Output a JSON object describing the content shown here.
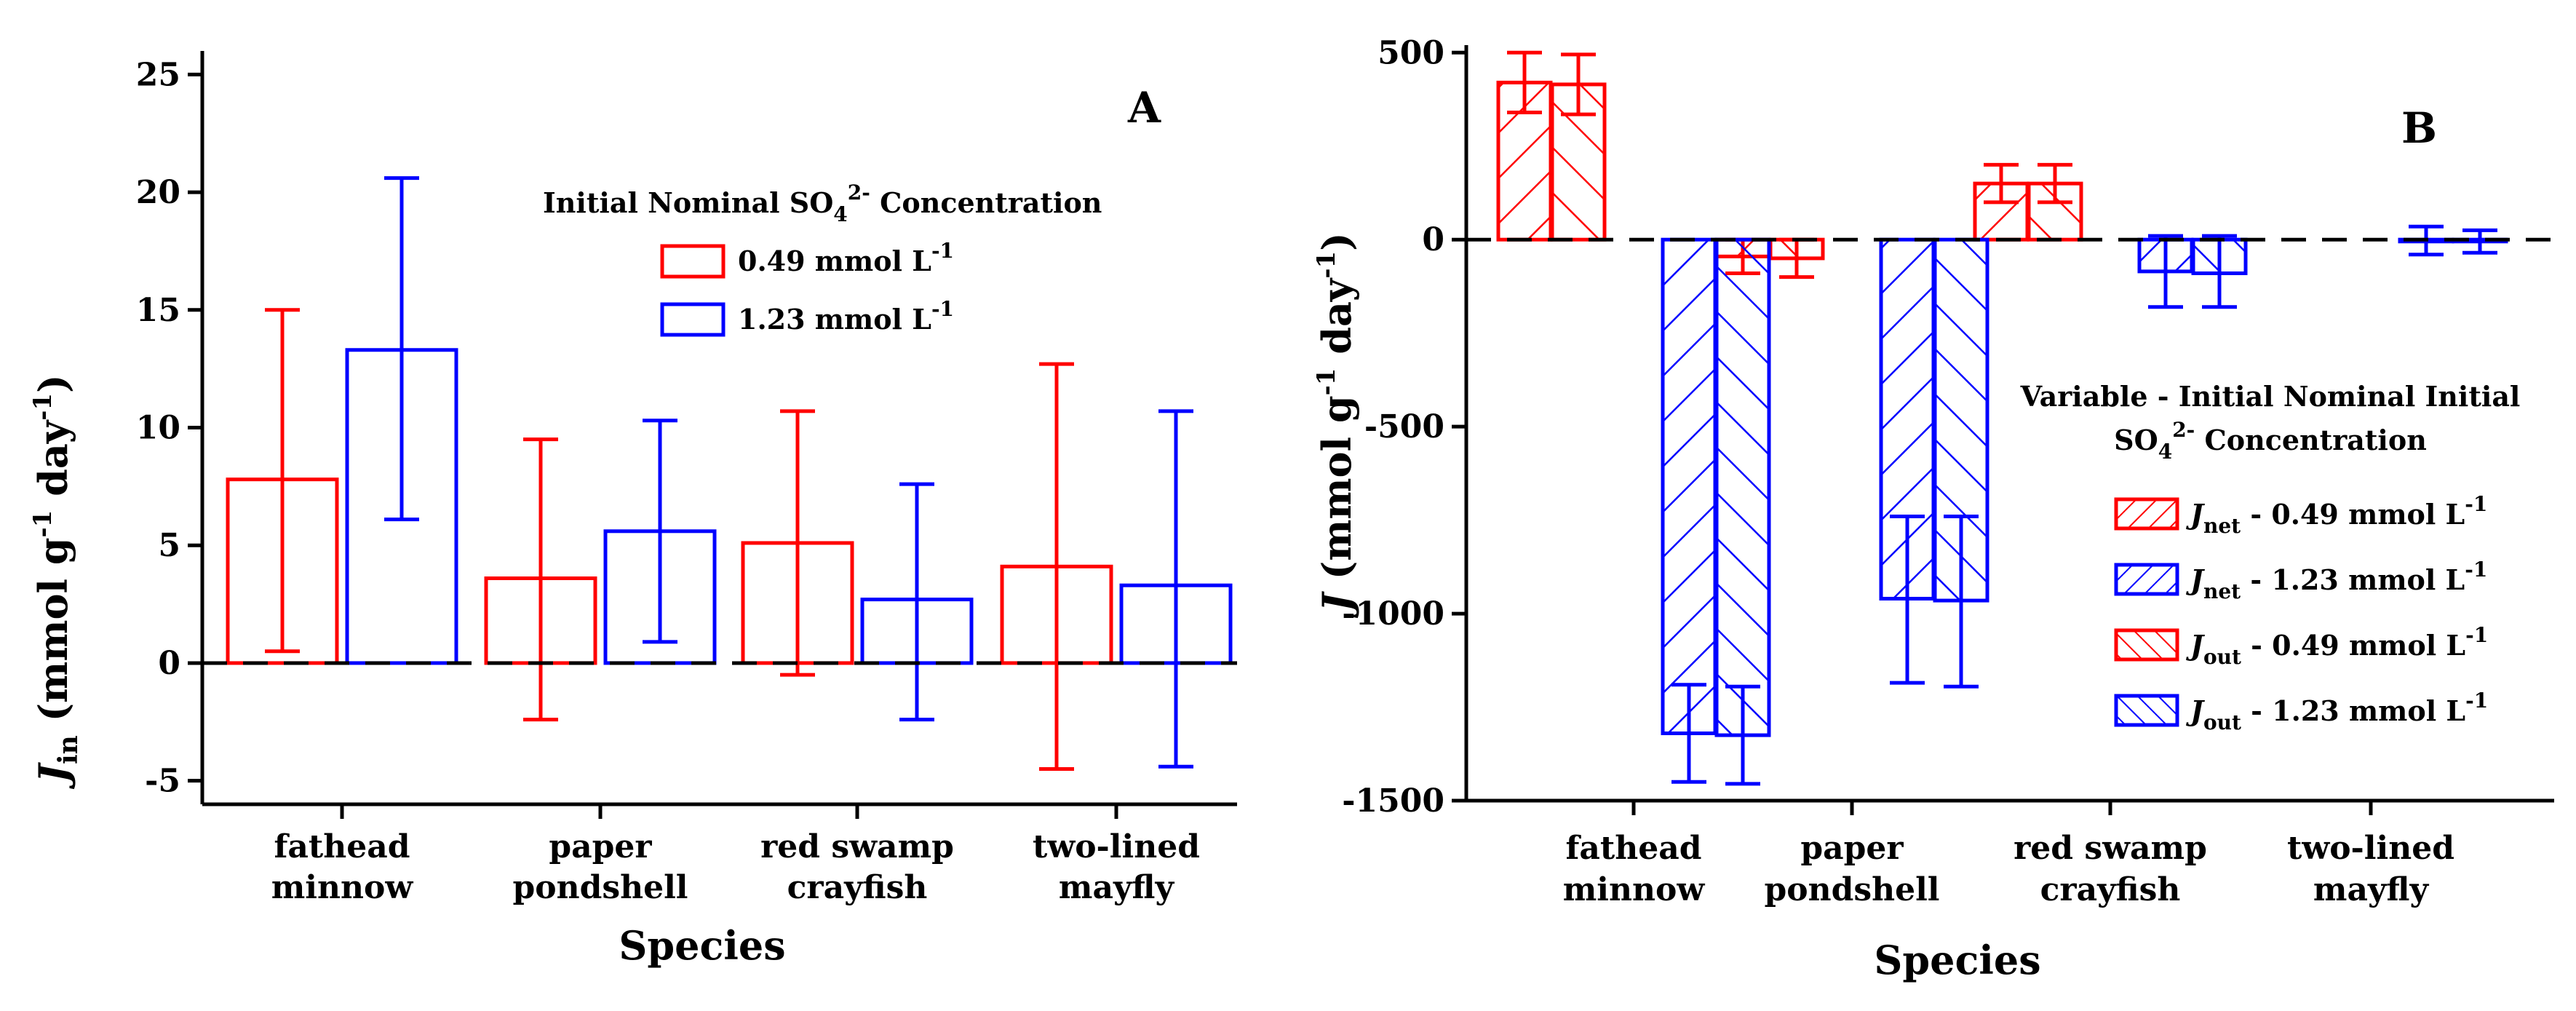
{
  "colors": {
    "red": "#ff0000",
    "blue": "#0000ff",
    "axis": "#000000"
  },
  "chart_data": [
    {
      "panel": "A",
      "type": "bar",
      "categories": [
        [
          "fathead",
          "minnow"
        ],
        [
          "paper",
          "pondshell"
        ],
        [
          "red swamp",
          "crayfish"
        ],
        [
          "two-lined",
          "mayfly"
        ]
      ],
      "xlabel": "Species",
      "ylabel_italic": "J",
      "ylabel_sub": "in",
      "ylabel_rest": " (mmol g",
      "ylabel_exp1": "-1",
      "ylabel_mid": " day",
      "ylabel_exp2": "-1",
      "ylabel_end": ")",
      "ylim": [
        -6,
        26
      ],
      "yticks": [
        "25",
        "20",
        "15",
        "10",
        "5",
        "0",
        "-5"
      ],
      "yticks_values": [
        25,
        20,
        15,
        10,
        5,
        0,
        -5
      ],
      "legend": {
        "title_main": "Initial Nominal SO",
        "title_sub": "4",
        "title_sup": "2-",
        "title_end": " Concentration",
        "items": [
          {
            "label": "0.49 mmol L",
            "sup": "-1",
            "color": "red"
          },
          {
            "label": "1.23 mmol L",
            "sup": "-1",
            "color": "blue"
          }
        ]
      },
      "series": [
        {
          "name": "0.49 mmol L-1",
          "color": "red",
          "values": [
            7.8,
            3.6,
            5.1,
            4.1
          ],
          "err_high": [
            15.0,
            9.5,
            10.7,
            12.7
          ],
          "err_low": [
            0.5,
            -2.4,
            -0.5,
            -4.5
          ]
        },
        {
          "name": "1.23 mmol L-1",
          "color": "blue",
          "values": [
            13.3,
            5.6,
            2.7,
            3.3
          ],
          "err_high": [
            20.6,
            10.3,
            7.6,
            10.7
          ],
          "err_low": [
            6.1,
            0.9,
            -2.4,
            -4.4
          ]
        }
      ]
    },
    {
      "panel": "B",
      "type": "bar",
      "categories": [
        [
          "fathead",
          "minnow"
        ],
        [
          "paper",
          "pondshell"
        ],
        [
          "red swamp",
          "crayfish"
        ],
        [
          "two-lined",
          "mayfly"
        ]
      ],
      "xlabel": "Species",
      "ylabel_italic": "J",
      "ylabel_rest": " (mmol g",
      "ylabel_exp1": "-1",
      "ylabel_mid": " day",
      "ylabel_exp2": "-1",
      "ylabel_end": ")",
      "ylim": [
        -1500,
        520
      ],
      "yticks": [
        "500",
        "0",
        "-500",
        "-1000",
        "-1500"
      ],
      "yticks_values": [
        500,
        0,
        -500,
        -1000,
        -1500
      ],
      "legend": {
        "title_line1": "Variable - Initial Nominal Initial",
        "title_line2_main": "SO",
        "title_line2_sub": "4",
        "title_line2_sup": "2-",
        "title_line2_end": " Concentration",
        "items": [
          {
            "italic": "J",
            "sub": "net",
            "label": " - 0.49 mmol L",
            "sup": "-1",
            "color": "red",
            "hatch": "up"
          },
          {
            "italic": "J",
            "sub": "net",
            "label": " - 1.23 mmol L",
            "sup": "-1",
            "color": "blue",
            "hatch": "up"
          },
          {
            "italic": "J",
            "sub": "out",
            "label": " - 0.49 mmol L",
            "sup": "-1",
            "color": "red",
            "hatch": "down"
          },
          {
            "italic": "J",
            "sub": "out",
            "label": " - 1.23 mmol L",
            "sup": "-1",
            "color": "blue",
            "hatch": "down"
          }
        ]
      },
      "series": [
        {
          "name": "Jnet - 0.49 mmol L-1",
          "color": "red",
          "hatch": "up",
          "values": [
            420,
            -45,
            150,
            null
          ],
          "err_high": [
            500,
            0,
            200,
            null
          ],
          "err_low": [
            340,
            -90,
            100,
            null
          ]
        },
        {
          "name": "Jout - 0.49 mmol L-1",
          "color": "red",
          "hatch": "down",
          "values": [
            415,
            -50,
            150,
            null
          ],
          "err_high": [
            495,
            0,
            200,
            null
          ],
          "err_low": [
            335,
            -100,
            100,
            null
          ]
        },
        {
          "name": "Jnet - 1.23 mmol L-1",
          "color": "blue",
          "hatch": "up",
          "values": [
            -1320,
            -960,
            -85,
            -5
          ],
          "err_high": [
            -1190,
            -740,
            10,
            35
          ],
          "err_low": [
            -1450,
            -1185,
            -180,
            -40
          ]
        },
        {
          "name": "Jout - 1.23 mmol L-1",
          "color": "blue",
          "hatch": "down",
          "values": [
            -1325,
            -965,
            -90,
            -5
          ],
          "err_high": [
            -1195,
            -740,
            10,
            25
          ],
          "err_low": [
            -1455,
            -1195,
            -180,
            -35
          ]
        }
      ]
    }
  ]
}
